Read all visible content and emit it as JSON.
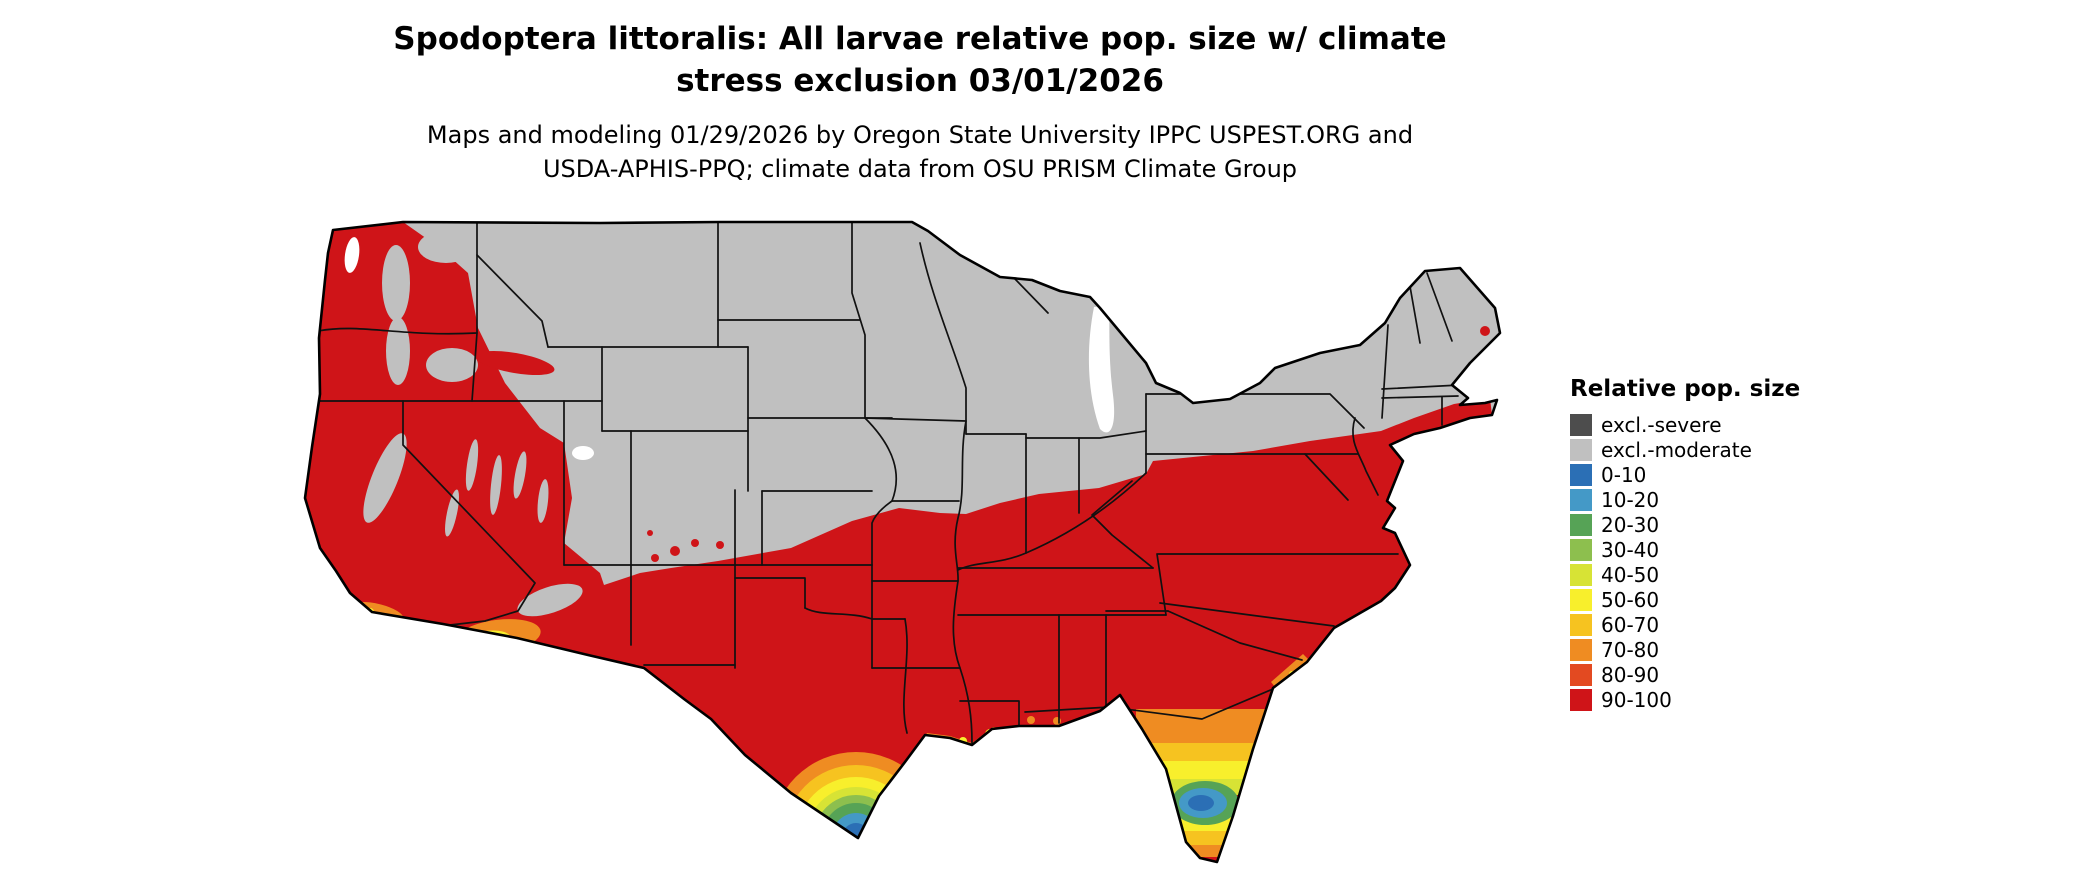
{
  "title": {
    "line1": "Spodoptera littoralis: All larvae relative pop. size w/ climate",
    "line2": "stress exclusion 03/01/2026"
  },
  "subtitle": {
    "line1": "Maps and modeling 01/29/2026 by Oregon State University IPPC USPEST.ORG and",
    "line2": "USDA-APHIS-PPQ; climate data from OSU PRISM Climate Group"
  },
  "legend": {
    "title": "Relative pop. size",
    "entries": [
      {
        "key": "excl-severe",
        "label": "excl.-severe",
        "color": "#4d4d4d"
      },
      {
        "key": "excl-moderate",
        "label": "excl.-moderate",
        "color": "#c0c0c0"
      },
      {
        "key": "0-10",
        "label": "0-10",
        "color": "#2b6fb5"
      },
      {
        "key": "10-20",
        "label": "10-20",
        "color": "#4499c7"
      },
      {
        "key": "20-30",
        "label": "20-30",
        "color": "#56a356"
      },
      {
        "key": "30-40",
        "label": "30-40",
        "color": "#8dbf4e"
      },
      {
        "key": "40-50",
        "label": "40-50",
        "color": "#d7e335"
      },
      {
        "key": "50-60",
        "label": "50-60",
        "color": "#f8ef2c"
      },
      {
        "key": "60-70",
        "label": "60-70",
        "color": "#f6c320"
      },
      {
        "key": "70-80",
        "label": "70-80",
        "color": "#ef8c22"
      },
      {
        "key": "80-90",
        "label": "80-90",
        "color": "#e34a21"
      },
      {
        "key": "90-100",
        "label": "90-100",
        "color": "#cf1418"
      }
    ]
  },
  "map": {
    "date_shown": "03/01/2026",
    "outline_color": "#000000",
    "water_color": "#ffffff"
  }
}
